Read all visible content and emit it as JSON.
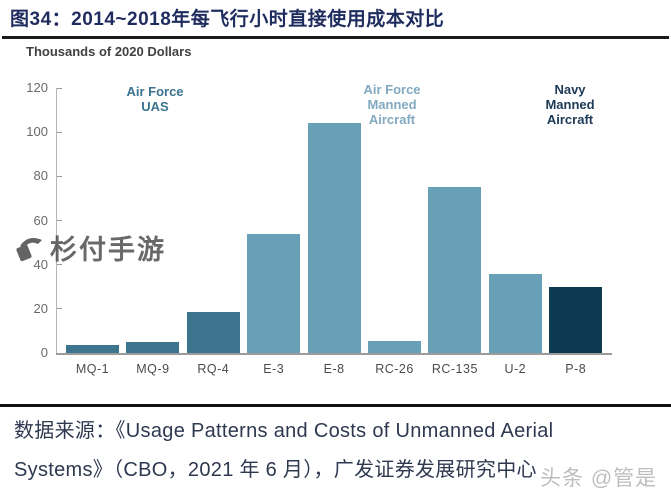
{
  "header": {
    "title": "图34：2014~2018年每飞行小时直接使用成本对比"
  },
  "chart_data": {
    "type": "bar",
    "y_axis_title": "Thousands of 2020 Dollars",
    "categories": [
      "MQ-1",
      "MQ-9",
      "RQ-4",
      "E-3",
      "E-8",
      "RC-26",
      "RC-135",
      "U-2",
      "P-8"
    ],
    "values": [
      3.5,
      5,
      18.5,
      54,
      104,
      5.5,
      75,
      36,
      30
    ],
    "bar_colors": [
      "#3e758e",
      "#3e758e",
      "#3e758e",
      "#68a0b7",
      "#68a0b7",
      "#68a0b7",
      "#68a0b7",
      "#68a0b7",
      "#0d3a50"
    ],
    "ylim": [
      0,
      120
    ],
    "yticks": [
      0,
      20,
      40,
      60,
      80,
      100,
      120
    ],
    "grid": false,
    "group_labels": [
      {
        "name": "air-force-uas",
        "lines": [
          "Air Force",
          "UAS"
        ],
        "color": "#3b7390"
      },
      {
        "name": "air-force-manned",
        "lines": [
          "Air Force",
          "Manned",
          "Aircraft"
        ],
        "color": "#82a9c0"
      },
      {
        "name": "navy-manned",
        "lines": [
          "Navy",
          "Manned",
          "Aircraft"
        ],
        "color": "#1c3a55"
      }
    ]
  },
  "watermarks": {
    "center_text": "杉付手游",
    "corner_text": "头条 @管是"
  },
  "footer": {
    "source_line1": "数据来源：《Usage Patterns and Costs of Unmanned Aerial",
    "source_line2": "Systems》（CBO，2021 年 6 月），广发证券发展研究中心"
  }
}
